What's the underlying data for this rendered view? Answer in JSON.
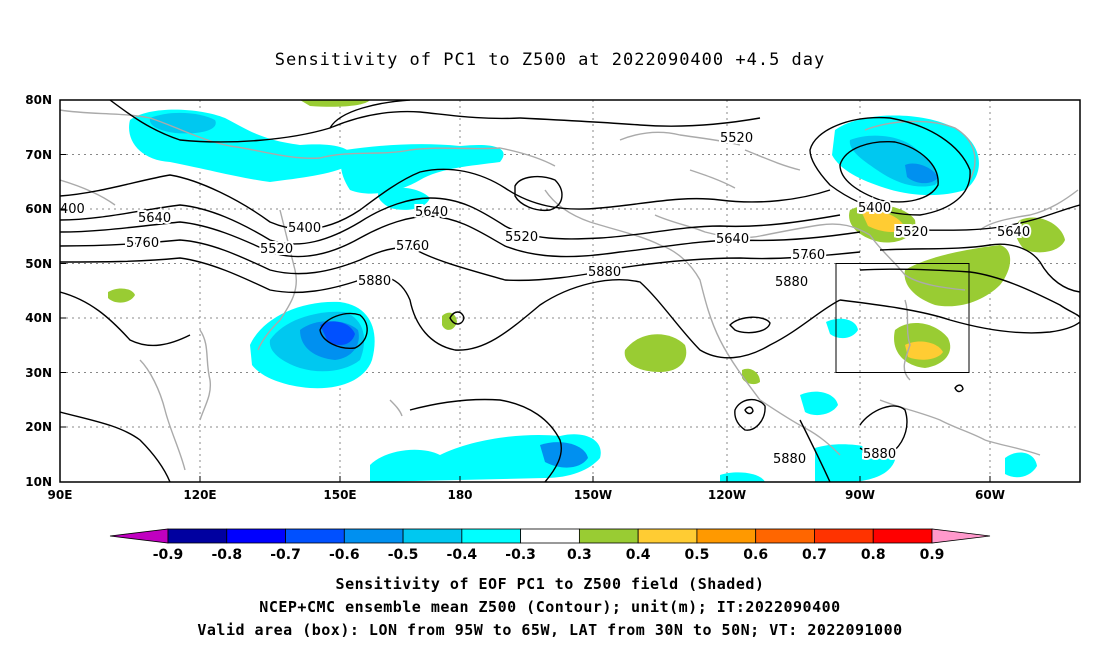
{
  "title": "Sensitivity of PC1 to Z500 at 2022090400 +4.5 day",
  "lat_labels": [
    "80N",
    "70N",
    "60N",
    "50N",
    "40N",
    "30N",
    "20N",
    "10N"
  ],
  "lon_labels": [
    "90E",
    "120E",
    "150E",
    "180",
    "150W",
    "120W",
    "90W",
    "60W"
  ],
  "contour_labels": [
    "400",
    "5640",
    "5760",
    "5400",
    "5520",
    "5880",
    "5640",
    "5760",
    "5520",
    "5520",
    "5640",
    "5760",
    "5880",
    "5880",
    "5400",
    "5520",
    "5640",
    "5880",
    "5880"
  ],
  "colorbar": {
    "labels": [
      "-0.9",
      "-0.8",
      "-0.7",
      "-0.6",
      "-0.5",
      "-0.4",
      "-0.3",
      "0.3",
      "0.4",
      "0.5",
      "0.6",
      "0.7",
      "0.8",
      "0.9"
    ],
    "colors": [
      "#c000c0",
      "#0000a0",
      "#0000ff",
      "#0050ff",
      "#0090f0",
      "#00c8f0",
      "#00ffff",
      "#ffffff",
      "#99cc33",
      "#ffcc33",
      "#ff9900",
      "#ff6600",
      "#ff3300",
      "#ff0000",
      "#ff99cc"
    ]
  },
  "captions": [
    "Sensitivity of EOF PC1 to Z500 field (Shaded)",
    "NCEP+CMC ensemble mean Z500 (Contour); unit(m); IT:2022090400",
    "Valid area (box): LON from 95W to 65W, LAT from 30N to 50N; VT: 2022091000"
  ]
}
